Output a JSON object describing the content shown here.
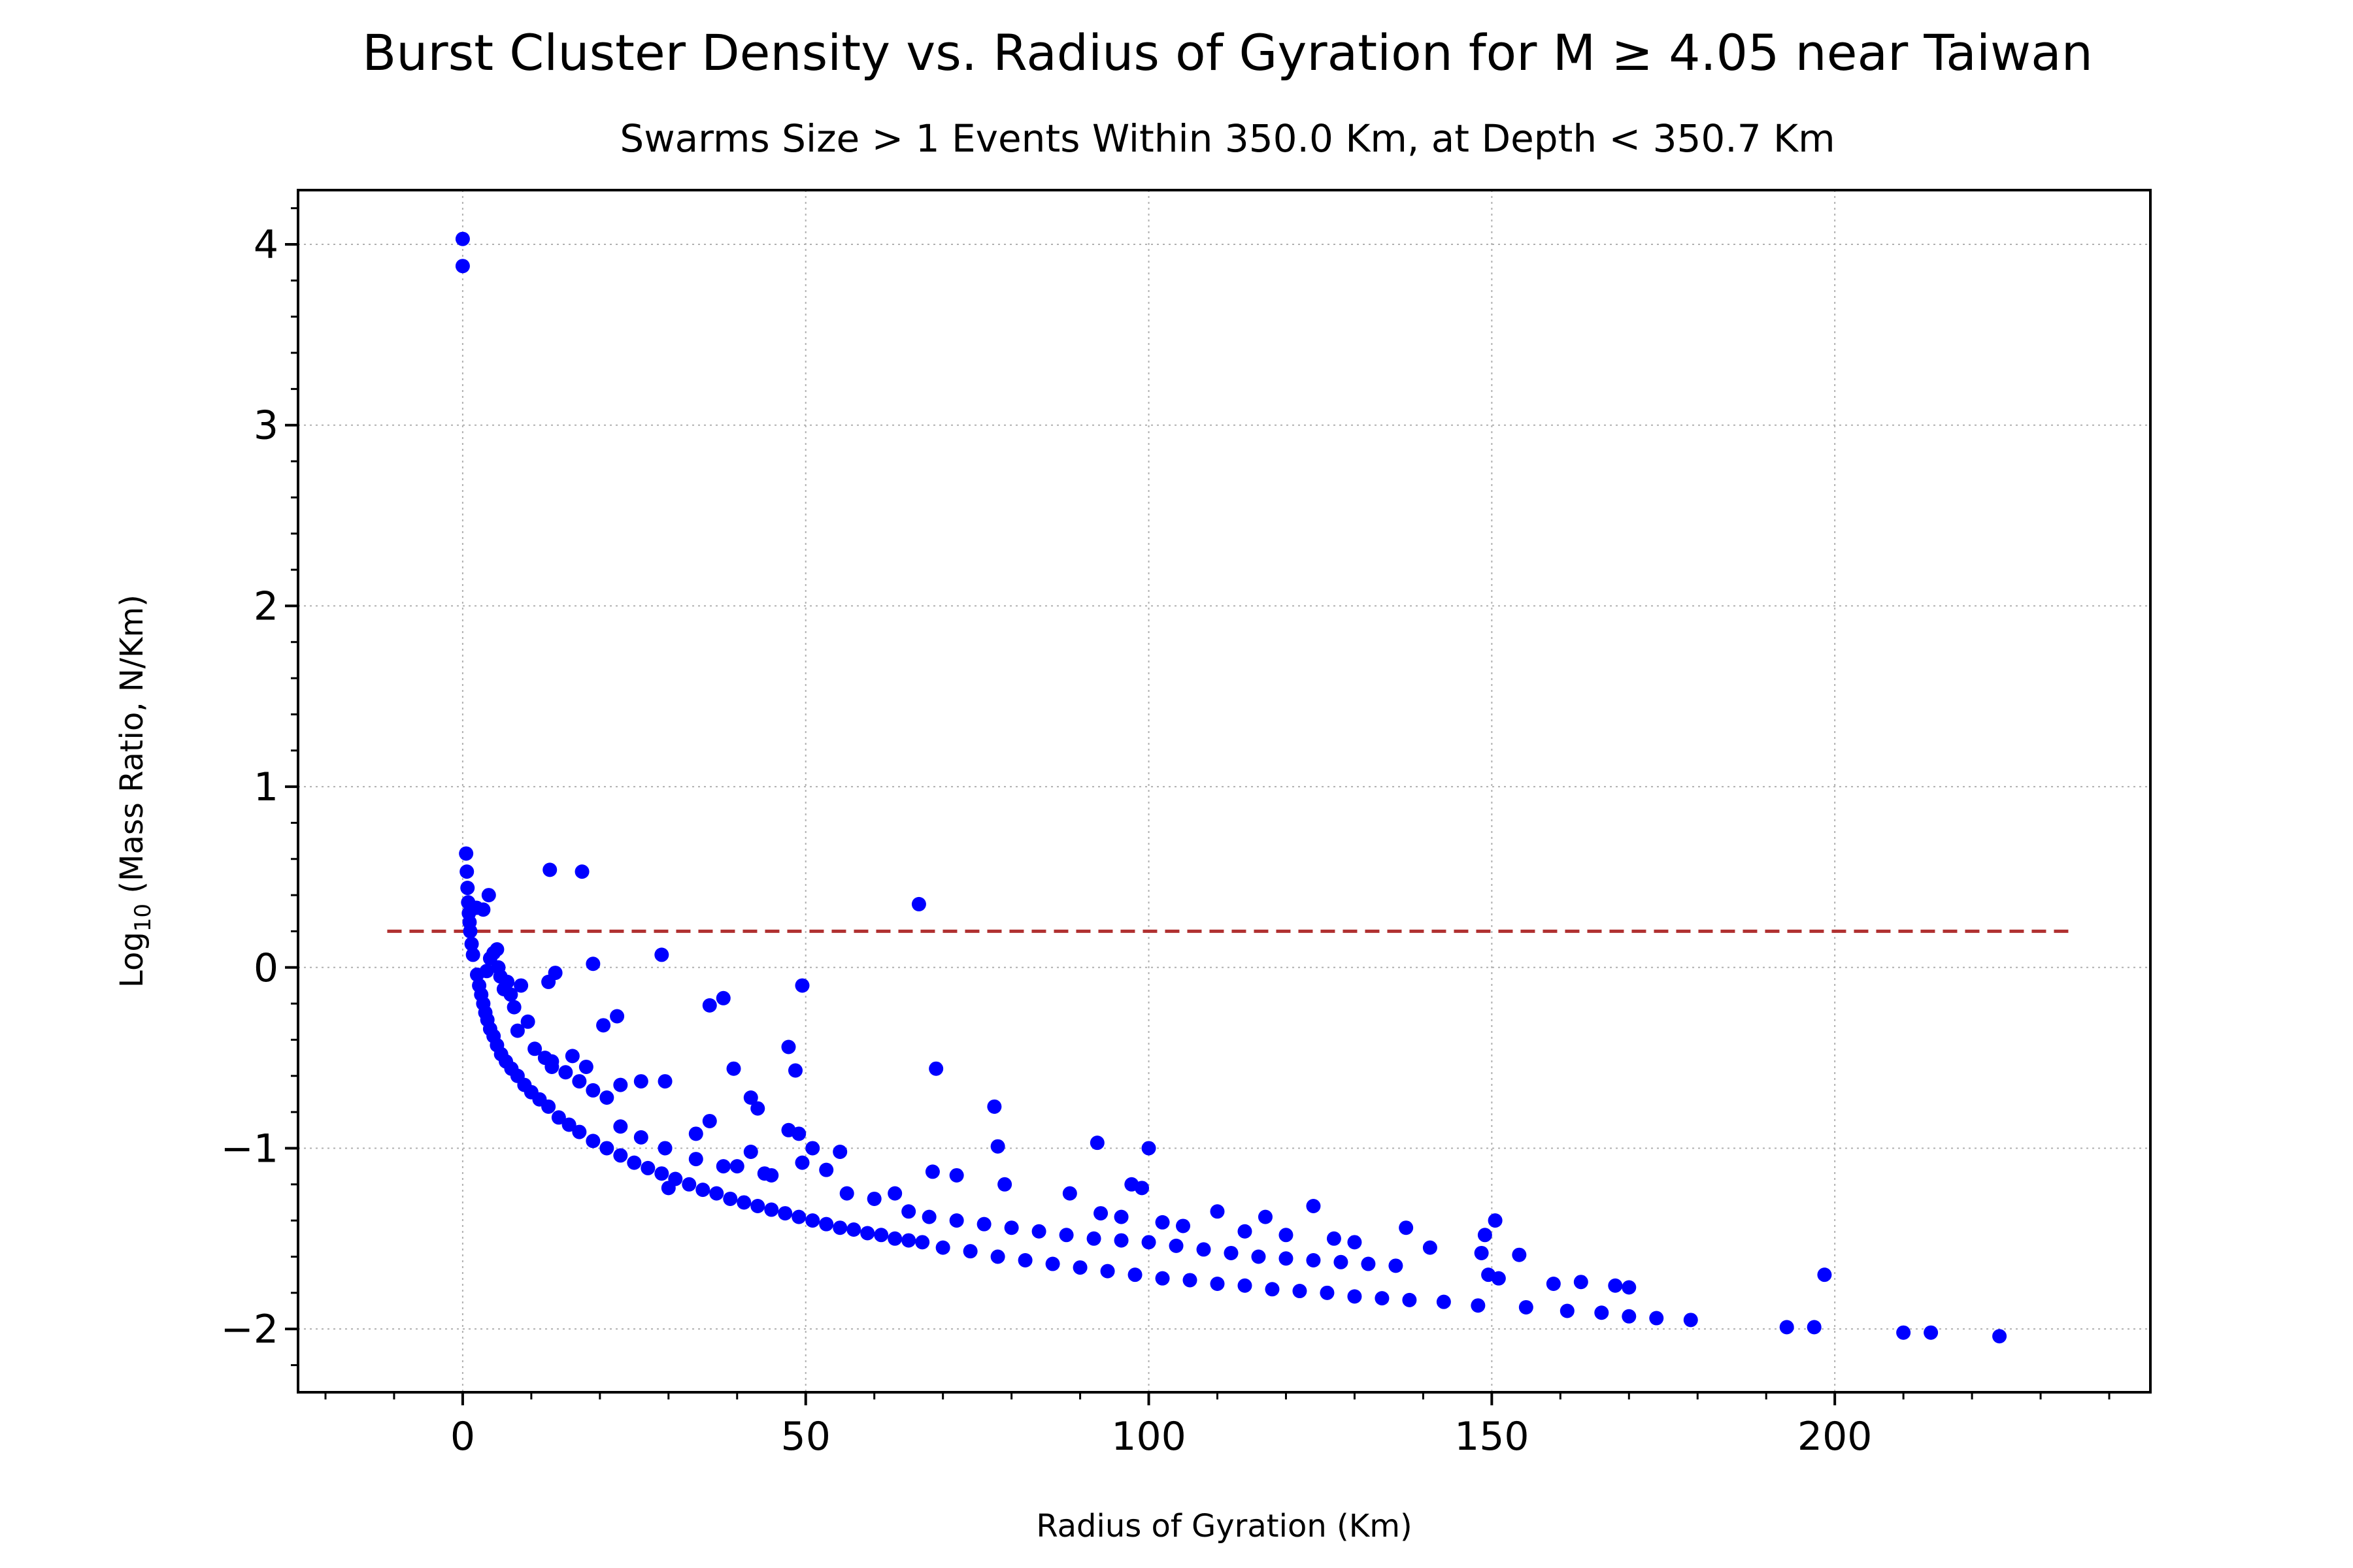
{
  "chart_data": {
    "type": "scatter",
    "title": "Burst Cluster Density vs. Radius of Gyration for M ≥ 4.05 near Taiwan",
    "subtitle": "Swarms Size > 1 Events Within 350.0 Km, at Depth < 350.7 Km",
    "xlabel": "Radius of Gyration (Km)",
    "ylabel": {
      "prefix": "Log",
      "subscript": "10",
      "suffix": " (Mass Ratio, N/Km)"
    },
    "xlim": [
      -24,
      246
    ],
    "ylim": [
      -2.35,
      4.3
    ],
    "x_ticks": [
      0,
      50,
      100,
      150,
      200
    ],
    "x_tick_labels": [
      "0",
      "50",
      "100",
      "150",
      "200"
    ],
    "y_ticks": [
      -2,
      -1,
      0,
      1,
      2,
      3,
      4
    ],
    "y_tick_labels": [
      "−2",
      "−1",
      "0",
      "1",
      "2",
      "3",
      "4"
    ],
    "grid": true,
    "grid_style": "dotted",
    "marker_color": "#0000ff",
    "reference_line": {
      "y": 0.2,
      "x_range": [
        -11,
        235
      ],
      "color": "#b03030",
      "style": "dashed"
    },
    "series": [
      {
        "points": [
          [
            0.0,
            4.03
          ],
          [
            0.0,
            3.88
          ],
          [
            0.5,
            0.63
          ],
          [
            0.6,
            0.53
          ],
          [
            0.7,
            0.44
          ],
          [
            0.8,
            0.36
          ],
          [
            0.9,
            0.3
          ],
          [
            1.0,
            0.25
          ],
          [
            1.1,
            0.2
          ],
          [
            1.3,
            0.13
          ],
          [
            1.5,
            0.07
          ],
          [
            2.0,
            0.33
          ],
          [
            3.0,
            0.32
          ],
          [
            3.8,
            0.4
          ],
          [
            2.1,
            -0.04
          ],
          [
            2.4,
            -0.1
          ],
          [
            2.7,
            -0.15
          ],
          [
            3.0,
            -0.2
          ],
          [
            3.3,
            -0.25
          ],
          [
            3.6,
            -0.29
          ],
          [
            4.0,
            -0.34
          ],
          [
            4.5,
            -0.38
          ],
          [
            5.0,
            -0.43
          ],
          [
            5.6,
            -0.48
          ],
          [
            6.3,
            -0.52
          ],
          [
            7.1,
            -0.56
          ],
          [
            8.0,
            -0.6
          ],
          [
            9.0,
            -0.65
          ],
          [
            10.0,
            -0.69
          ],
          [
            11.2,
            -0.73
          ],
          [
            12.5,
            -0.77
          ],
          [
            4.5,
            0.08
          ],
          [
            5.0,
            0.1
          ],
          [
            5.5,
            -0.05
          ],
          [
            6.0,
            -0.12
          ],
          [
            6.5,
            -0.08
          ],
          [
            7.0,
            -0.15
          ],
          [
            4.0,
            0.05
          ],
          [
            3.5,
            -0.02
          ],
          [
            5.2,
            0.0
          ],
          [
            8.5,
            -0.1
          ],
          [
            7.5,
            -0.22
          ],
          [
            8.0,
            -0.35
          ],
          [
            9.5,
            -0.3
          ],
          [
            10.5,
            -0.45
          ],
          [
            12.0,
            -0.5
          ],
          [
            13.0,
            -0.55
          ],
          [
            12.5,
            -0.08
          ],
          [
            13.5,
            -0.03
          ],
          [
            12.7,
            0.54
          ],
          [
            17.4,
            0.53
          ],
          [
            14.0,
            -0.83
          ],
          [
            15.5,
            -0.87
          ],
          [
            17.0,
            -0.91
          ],
          [
            19.0,
            -0.96
          ],
          [
            21.0,
            -1.0
          ],
          [
            23.0,
            -1.04
          ],
          [
            25.0,
            -1.08
          ],
          [
            27.0,
            -1.11
          ],
          [
            29.0,
            -1.14
          ],
          [
            31.0,
            -1.17
          ],
          [
            33.0,
            -1.2
          ],
          [
            35.0,
            -1.23
          ],
          [
            37.0,
            -1.25
          ],
          [
            39.0,
            -1.28
          ],
          [
            41.0,
            -1.3
          ],
          [
            43.0,
            -1.32
          ],
          [
            45.0,
            -1.34
          ],
          [
            47.0,
            -1.36
          ],
          [
            49.0,
            -1.38
          ],
          [
            51.0,
            -1.4
          ],
          [
            53.0,
            -1.42
          ],
          [
            55.0,
            -1.44
          ],
          [
            57.0,
            -1.45
          ],
          [
            59.0,
            -1.47
          ],
          [
            61.0,
            -1.48
          ],
          [
            63.0,
            -1.5
          ],
          [
            65.0,
            -1.51
          ],
          [
            67.0,
            -1.52
          ],
          [
            70.0,
            -1.55
          ],
          [
            74.0,
            -1.57
          ],
          [
            78.0,
            -1.6
          ],
          [
            82.0,
            -1.62
          ],
          [
            86.0,
            -1.64
          ],
          [
            90.0,
            -1.66
          ],
          [
            94.0,
            -1.68
          ],
          [
            98.0,
            -1.7
          ],
          [
            102.0,
            -1.72
          ],
          [
            106.0,
            -1.73
          ],
          [
            110.0,
            -1.75
          ],
          [
            114.0,
            -1.76
          ],
          [
            118.0,
            -1.78
          ],
          [
            122.0,
            -1.79
          ],
          [
            126.0,
            -1.8
          ],
          [
            130.0,
            -1.82
          ],
          [
            134.0,
            -1.83
          ],
          [
            138.0,
            -1.84
          ],
          [
            143.0,
            -1.85
          ],
          [
            148.0,
            -1.87
          ],
          [
            155.0,
            -1.88
          ],
          [
            161.0,
            -1.9
          ],
          [
            166.0,
            -1.91
          ],
          [
            170.0,
            -1.93
          ],
          [
            174.0,
            -1.94
          ],
          [
            179.0,
            -1.95
          ],
          [
            193.0,
            -1.99
          ],
          [
            197.0,
            -1.99
          ],
          [
            210.0,
            -2.02
          ],
          [
            214.0,
            -2.02
          ],
          [
            224.0,
            -2.04
          ],
          [
            13.0,
            -0.52
          ],
          [
            15.0,
            -0.58
          ],
          [
            17.0,
            -0.63
          ],
          [
            19.0,
            -0.68
          ],
          [
            21.0,
            -0.72
          ],
          [
            16.0,
            -0.49
          ],
          [
            18.0,
            -0.55
          ],
          [
            19.0,
            0.02
          ],
          [
            20.5,
            -0.32
          ],
          [
            22.5,
            -0.27
          ],
          [
            23.0,
            -0.65
          ],
          [
            26.0,
            -0.63
          ],
          [
            29.5,
            -0.63
          ],
          [
            29.0,
            0.07
          ],
          [
            36.0,
            -0.21
          ],
          [
            38.0,
            -0.17
          ],
          [
            39.5,
            -0.56
          ],
          [
            42.0,
            -0.72
          ],
          [
            43.0,
            -0.78
          ],
          [
            47.5,
            -0.44
          ],
          [
            48.5,
            -0.57
          ],
          [
            49.5,
            -0.1
          ],
          [
            23.0,
            -0.88
          ],
          [
            26.0,
            -0.94
          ],
          [
            29.5,
            -1.0
          ],
          [
            34.0,
            -1.06
          ],
          [
            40.0,
            -1.1
          ],
          [
            44.0,
            -1.14
          ],
          [
            47.5,
            -0.9
          ],
          [
            49.0,
            -0.92
          ],
          [
            49.5,
            -1.08
          ],
          [
            51.0,
            -1.0
          ],
          [
            53.0,
            -1.12
          ],
          [
            55.0,
            -1.02
          ],
          [
            56.0,
            -1.25
          ],
          [
            60.0,
            -1.28
          ],
          [
            63.0,
            -1.25
          ],
          [
            65.0,
            -1.35
          ],
          [
            68.0,
            -1.38
          ],
          [
            72.0,
            -1.4
          ],
          [
            76.0,
            -1.42
          ],
          [
            80.0,
            -1.44
          ],
          [
            84.0,
            -1.46
          ],
          [
            88.0,
            -1.48
          ],
          [
            92.0,
            -1.5
          ],
          [
            96.0,
            -1.51
          ],
          [
            100.0,
            -1.52
          ],
          [
            104.0,
            -1.54
          ],
          [
            108.0,
            -1.56
          ],
          [
            112.0,
            -1.58
          ],
          [
            116.0,
            -1.6
          ],
          [
            120.0,
            -1.61
          ],
          [
            124.0,
            -1.62
          ],
          [
            128.0,
            -1.63
          ],
          [
            132.0,
            -1.64
          ],
          [
            136.0,
            -1.65
          ],
          [
            66.5,
            0.35
          ],
          [
            69.0,
            -0.56
          ],
          [
            77.5,
            -0.77
          ],
          [
            78.0,
            -0.99
          ],
          [
            79.0,
            -1.2
          ],
          [
            68.5,
            -1.13
          ],
          [
            72.0,
            -1.15
          ],
          [
            88.5,
            -1.25
          ],
          [
            92.5,
            -0.97
          ],
          [
            93.0,
            -1.36
          ],
          [
            96.0,
            -1.38
          ],
          [
            97.5,
            -1.2
          ],
          [
            99.0,
            -1.22
          ],
          [
            100.0,
            -1.0
          ],
          [
            102.0,
            -1.41
          ],
          [
            105.0,
            -1.43
          ],
          [
            110.0,
            -1.35
          ],
          [
            114.0,
            -1.46
          ],
          [
            117.0,
            -1.38
          ],
          [
            120.0,
            -1.48
          ],
          [
            124.0,
            -1.32
          ],
          [
            127.0,
            -1.5
          ],
          [
            130.0,
            -1.52
          ],
          [
            137.5,
            -1.44
          ],
          [
            141.0,
            -1.55
          ],
          [
            148.5,
            -1.58
          ],
          [
            149.0,
            -1.48
          ],
          [
            150.5,
            -1.4
          ],
          [
            149.5,
            -1.7
          ],
          [
            151.0,
            -1.72
          ],
          [
            154.0,
            -1.59
          ],
          [
            159.0,
            -1.75
          ],
          [
            163.0,
            -1.74
          ],
          [
            168.0,
            -1.76
          ],
          [
            170.0,
            -1.77
          ],
          [
            198.5,
            -1.7
          ],
          [
            36.0,
            -0.85
          ],
          [
            34.0,
            -0.92
          ],
          [
            38.0,
            -1.1
          ],
          [
            42.0,
            -1.02
          ],
          [
            45.0,
            -1.15
          ],
          [
            30.0,
            -1.22
          ]
        ]
      }
    ]
  }
}
